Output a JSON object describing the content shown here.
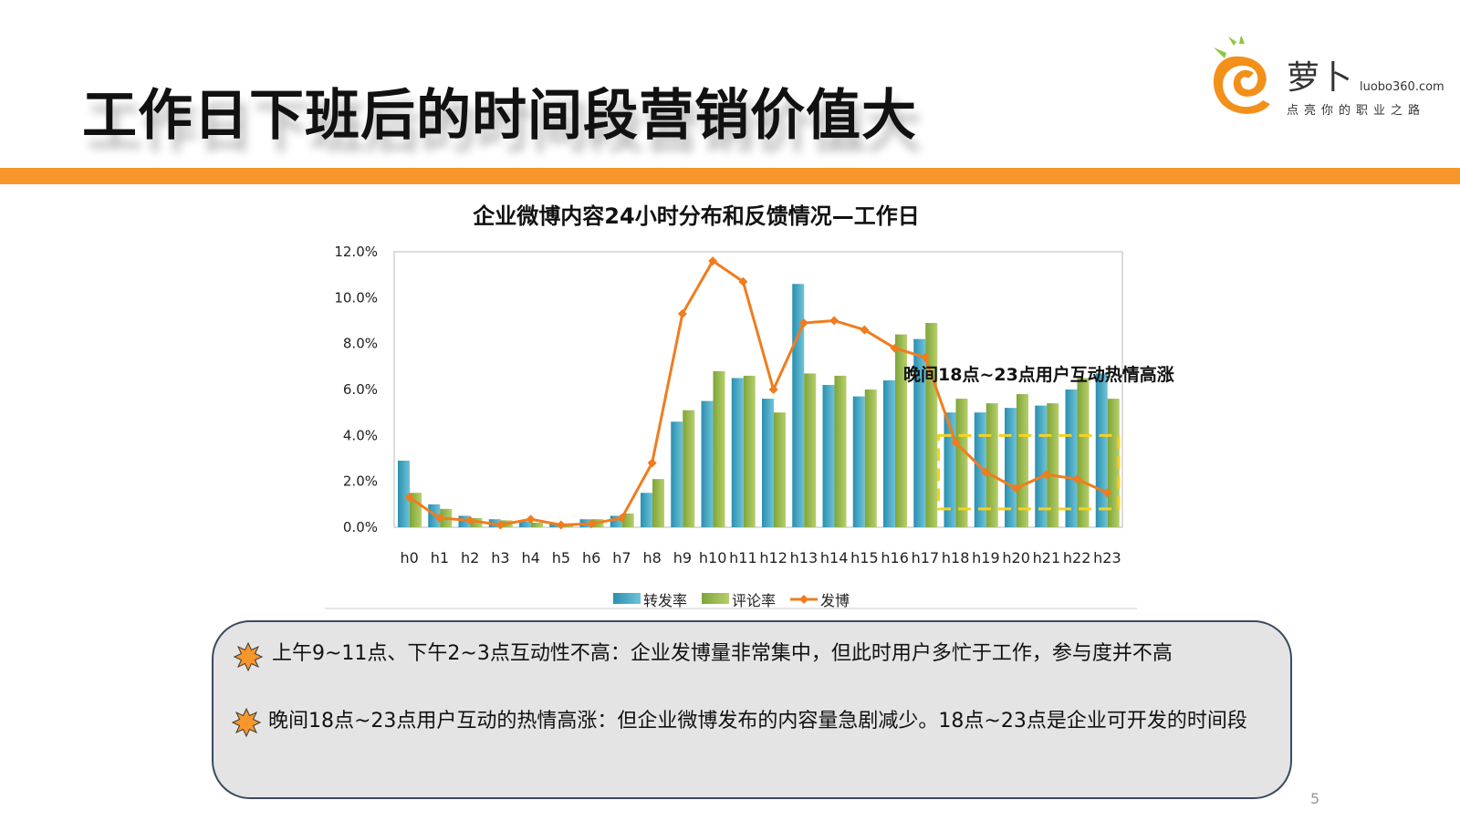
{
  "slide": {
    "title": "工作日下班后的时间段营销价值大",
    "page_number": "5",
    "accent_color": "#f7962a"
  },
  "logo": {
    "name": "萝卜",
    "url": "luobo360.com",
    "slogan": "点亮你的职业之路",
    "icon": "carrot-logo-icon"
  },
  "chart_data": {
    "type": "bar",
    "title": "企业微博内容24小时分布和反馈情况—工作日",
    "categories": [
      "h0",
      "h1",
      "h2",
      "h3",
      "h4",
      "h5",
      "h6",
      "h7",
      "h8",
      "h9",
      "h10",
      "h11",
      "h12",
      "h13",
      "h14",
      "h15",
      "h16",
      "h17",
      "h18",
      "h19",
      "h20",
      "h21",
      "h22",
      "h23"
    ],
    "y_ticks": [
      "0.0%",
      "2.0%",
      "4.0%",
      "6.0%",
      "8.0%",
      "10.0%",
      "12.0%"
    ],
    "ylim": [
      0,
      12
    ],
    "series": [
      {
        "name": "转发率",
        "kind": "bar",
        "color": "#2a8fb0",
        "values": [
          2.9,
          1.0,
          0.5,
          0.35,
          0.25,
          0.15,
          0.35,
          0.5,
          1.5,
          4.6,
          5.5,
          6.5,
          5.6,
          10.6,
          6.2,
          5.7,
          6.4,
          8.2,
          5.0,
          5.0,
          5.2,
          5.3,
          6.0,
          6.7
        ]
      },
      {
        "name": "评论率",
        "kind": "bar",
        "color": "#7ea43a",
        "values": [
          1.5,
          0.8,
          0.4,
          0.3,
          0.2,
          0.15,
          0.35,
          0.6,
          2.1,
          5.1,
          6.8,
          6.6,
          5.0,
          6.7,
          6.6,
          6.0,
          8.4,
          8.9,
          5.6,
          5.4,
          5.8,
          5.4,
          6.5,
          5.6
        ]
      },
      {
        "name": "发博",
        "kind": "line",
        "color": "#f07c1e",
        "values": [
          1.3,
          0.4,
          0.3,
          0.1,
          0.35,
          0.1,
          0.15,
          0.4,
          2.8,
          9.3,
          11.6,
          10.7,
          6.0,
          8.9,
          9.0,
          8.6,
          7.8,
          7.4,
          3.7,
          2.4,
          1.7,
          2.3,
          2.1,
          1.5
        ]
      }
    ],
    "annotation": {
      "text": "晚间18点~23点用户互动热情高涨",
      "highlight_range": [
        "h18",
        "h23"
      ],
      "highlight_ylim": [
        0.8,
        4.0
      ]
    },
    "grid": false,
    "legend_position": "bottom"
  },
  "notes": [
    {
      "icon": "sun-bullet-icon",
      "text": "上午9~11点、下午2~3点互动性不高：企业发博量非常集中，但此时用户多忙于工作，参与度并不高"
    },
    {
      "icon": "sun-bullet-icon",
      "text": "晚间18点~23点用户互动的热情高涨：但企业微博发布的内容量急剧减少。18点~23点是企业可开发的时间段"
    }
  ]
}
